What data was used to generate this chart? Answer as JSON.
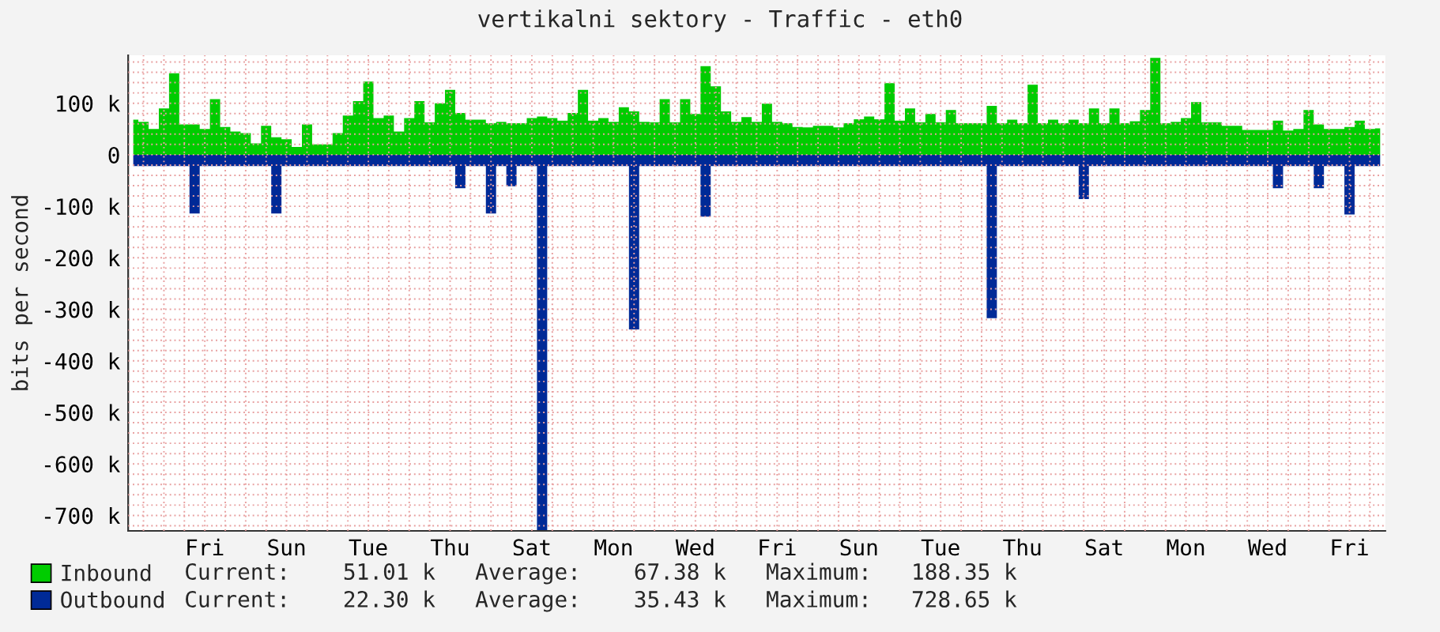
{
  "chart_data": {
    "type": "area",
    "title": "vertikalni sektory - Traffic - eth0",
    "ylabel": "bits per second",
    "categories": [
      null,
      null,
      null,
      null,
      null,
      null,
      null,
      "Fri",
      null,
      null,
      null,
      null,
      null,
      null,
      null,
      "Sun",
      null,
      null,
      null,
      null,
      null,
      null,
      null,
      "Tue",
      null,
      null,
      null,
      null,
      null,
      null,
      null,
      "Thu",
      null,
      null,
      null,
      null,
      null,
      null,
      null,
      "Sat",
      null,
      null,
      null,
      null,
      null,
      null,
      null,
      "Mon",
      null,
      null,
      null,
      null,
      null,
      null,
      null,
      "Wed",
      null,
      null,
      null,
      null,
      null,
      null,
      null,
      "Fri",
      null,
      null,
      null,
      null,
      null,
      null,
      null,
      "Sun",
      null,
      null,
      null,
      null,
      null,
      null,
      null,
      "Tue",
      null,
      null,
      null,
      null,
      null,
      null,
      null,
      "Thu",
      null,
      null,
      null,
      null,
      null,
      null,
      null,
      "Sat",
      null,
      null,
      null,
      null,
      null,
      null,
      null,
      "Mon",
      null,
      null,
      null,
      null,
      null,
      null,
      null,
      "Wed",
      null,
      null,
      null,
      null,
      null,
      null,
      null,
      "Fri",
      null,
      null,
      null
    ],
    "ylim": [
      -730,
      193
    ],
    "yticks": [
      {
        "value": -720,
        "label": null
      },
      {
        "value": -700,
        "label": "-700 k"
      },
      {
        "value": -680,
        "label": null
      },
      {
        "value": -660,
        "label": null
      },
      {
        "value": -640,
        "label": null
      },
      {
        "value": -620,
        "label": null
      },
      {
        "value": -600,
        "label": "-600 k"
      },
      {
        "value": -580,
        "label": null
      },
      {
        "value": -560,
        "label": null
      },
      {
        "value": -540,
        "label": null
      },
      {
        "value": -520,
        "label": null
      },
      {
        "value": -500,
        "label": "-500 k"
      },
      {
        "value": -480,
        "label": null
      },
      {
        "value": -460,
        "label": null
      },
      {
        "value": -440,
        "label": null
      },
      {
        "value": -420,
        "label": null
      },
      {
        "value": -400,
        "label": "-400 k"
      },
      {
        "value": -380,
        "label": null
      },
      {
        "value": -360,
        "label": null
      },
      {
        "value": -340,
        "label": null
      },
      {
        "value": -320,
        "label": null
      },
      {
        "value": -300,
        "label": "-300 k"
      },
      {
        "value": -280,
        "label": null
      },
      {
        "value": -260,
        "label": null
      },
      {
        "value": -240,
        "label": null
      },
      {
        "value": -220,
        "label": null
      },
      {
        "value": -200,
        "label": "-200 k"
      },
      {
        "value": -180,
        "label": null
      },
      {
        "value": -160,
        "label": null
      },
      {
        "value": -140,
        "label": null
      },
      {
        "value": -120,
        "label": null
      },
      {
        "value": -100,
        "label": "-100 k"
      },
      {
        "value": -80,
        "label": null
      },
      {
        "value": -60,
        "label": null
      },
      {
        "value": -40,
        "label": null
      },
      {
        "value": -20,
        "label": null
      },
      {
        "value": 0,
        "label": "0"
      },
      {
        "value": 20,
        "label": null
      },
      {
        "value": 40,
        "label": null
      },
      {
        "value": 60,
        "label": null
      },
      {
        "value": 80,
        "label": null
      },
      {
        "value": 100,
        "label": "100 k"
      },
      {
        "value": 120,
        "label": null
      },
      {
        "value": 140,
        "label": null
      },
      {
        "value": 160,
        "label": null
      },
      {
        "value": 180,
        "label": null
      }
    ],
    "grid": true,
    "legend": "bottom",
    "series": [
      {
        "name": "Inbound",
        "color": "#00cc00",
        "values": [
          68,
          64,
          50,
          90,
          158,
          59,
          59,
          50,
          108,
          54,
          45,
          42,
          22,
          56,
          34,
          30,
          15,
          59,
          20,
          20,
          42,
          76,
          104,
          142,
          71,
          76,
          45,
          71,
          104,
          63,
          100,
          126,
          81,
          68,
          68,
          61,
          64,
          61,
          61,
          71,
          74,
          71,
          66,
          81,
          126,
          66,
          71,
          64,
          92,
          84,
          64,
          63,
          108,
          63,
          108,
          79,
          172,
          133,
          84,
          64,
          73,
          64,
          99,
          64,
          61,
          54,
          53,
          56,
          56,
          53,
          61,
          69,
          74,
          69,
          139,
          66,
          90,
          63,
          79,
          63,
          87,
          61,
          61,
          61,
          95,
          61,
          68,
          61,
          136,
          61,
          68,
          61,
          68,
          61,
          90,
          61,
          90,
          61,
          65,
          87,
          188,
          61,
          64,
          71,
          102,
          63,
          63,
          56,
          56,
          48,
          48,
          48,
          66,
          47,
          50,
          87,
          59,
          50,
          50,
          54,
          66,
          50,
          51
        ]
      },
      {
        "name": "Outbound",
        "color": "#002a97",
        "values": [
          -22,
          -22,
          -22,
          -22,
          -22,
          -22,
          -114,
          -22,
          -22,
          -22,
          -22,
          -22,
          -22,
          -22,
          -114,
          -22,
          -22,
          -22,
          -22,
          -22,
          -22,
          -22,
          -22,
          -22,
          -22,
          -22,
          -22,
          -22,
          -22,
          -22,
          -22,
          -22,
          -65,
          -22,
          -22,
          -114,
          -22,
          -61,
          -22,
          -22,
          -729,
          -22,
          -22,
          -22,
          -22,
          -22,
          -22,
          -22,
          -22,
          -339,
          -22,
          -22,
          -22,
          -22,
          -22,
          -22,
          -120,
          -22,
          -22,
          -22,
          -22,
          -22,
          -22,
          -22,
          -22,
          -22,
          -22,
          -22,
          -22,
          -22,
          -22,
          -22,
          -22,
          -22,
          -22,
          -22,
          -22,
          -22,
          -22,
          -22,
          -22,
          -22,
          -22,
          -22,
          -317,
          -22,
          -22,
          -22,
          -22,
          -22,
          -22,
          -22,
          -22,
          -86,
          -22,
          -22,
          -22,
          -22,
          -22,
          -22,
          -22,
          -22,
          -22,
          -22,
          -22,
          -22,
          -22,
          -22,
          -22,
          -22,
          -22,
          -22,
          -65,
          -22,
          -22,
          -22,
          -65,
          -22,
          -22,
          -116,
          -22,
          -22,
          -22
        ]
      }
    ],
    "annotations": [
      "Current:    51.01 k   Average:    67.38 k   Maximum:   188.35 k",
      "Current:    22.30 k   Average:    35.43 k   Maximum:   728.65 k"
    ]
  }
}
